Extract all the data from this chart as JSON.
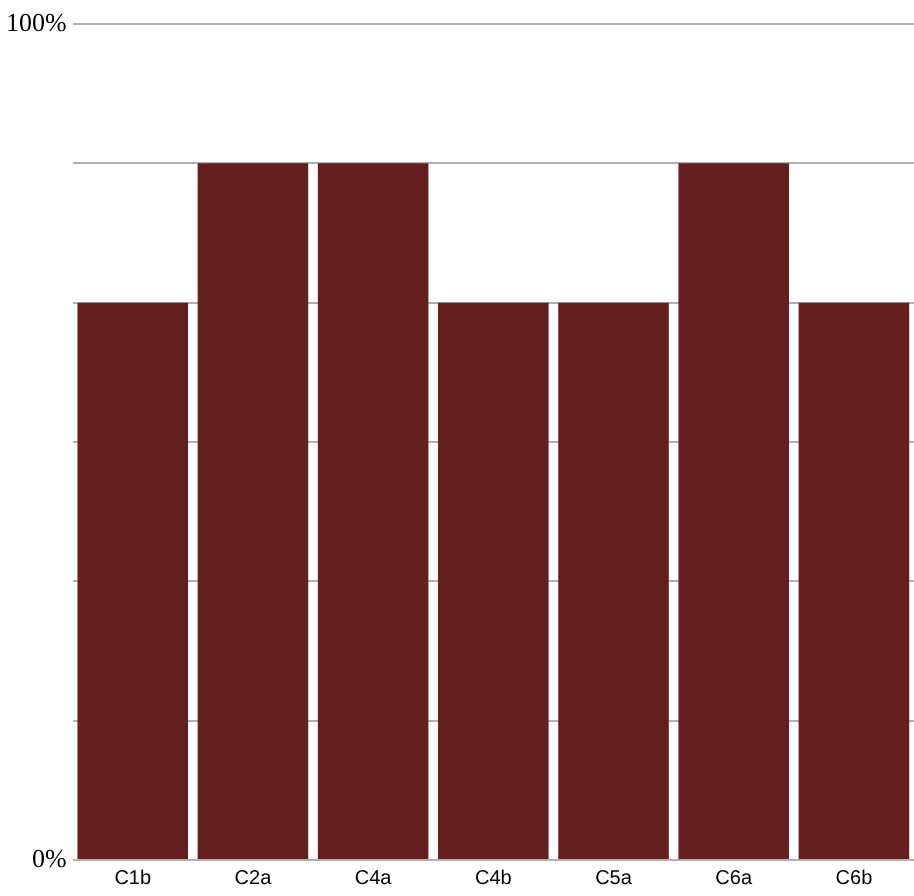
{
  "chart_data": {
    "type": "bar",
    "categories": [
      "C1b",
      "C2a",
      "C4a",
      "C4b",
      "C5a",
      "C6a",
      "C6b"
    ],
    "values": [
      66.67,
      83.33,
      83.33,
      66.67,
      66.67,
      83.33,
      66.67
    ],
    "color": "#63201e",
    "ylim": [
      0,
      100
    ],
    "yticks": [
      {
        "value": 0,
        "label": "0%"
      },
      {
        "value": 16.67,
        "label": null
      },
      {
        "value": 33.33,
        "label": null
      },
      {
        "value": 50,
        "label": null
      },
      {
        "value": 66.67,
        "label": null
      },
      {
        "value": 83.33,
        "label": null
      },
      {
        "value": 100,
        "label": "100%"
      }
    ],
    "grid": "y",
    "legend": false
  }
}
